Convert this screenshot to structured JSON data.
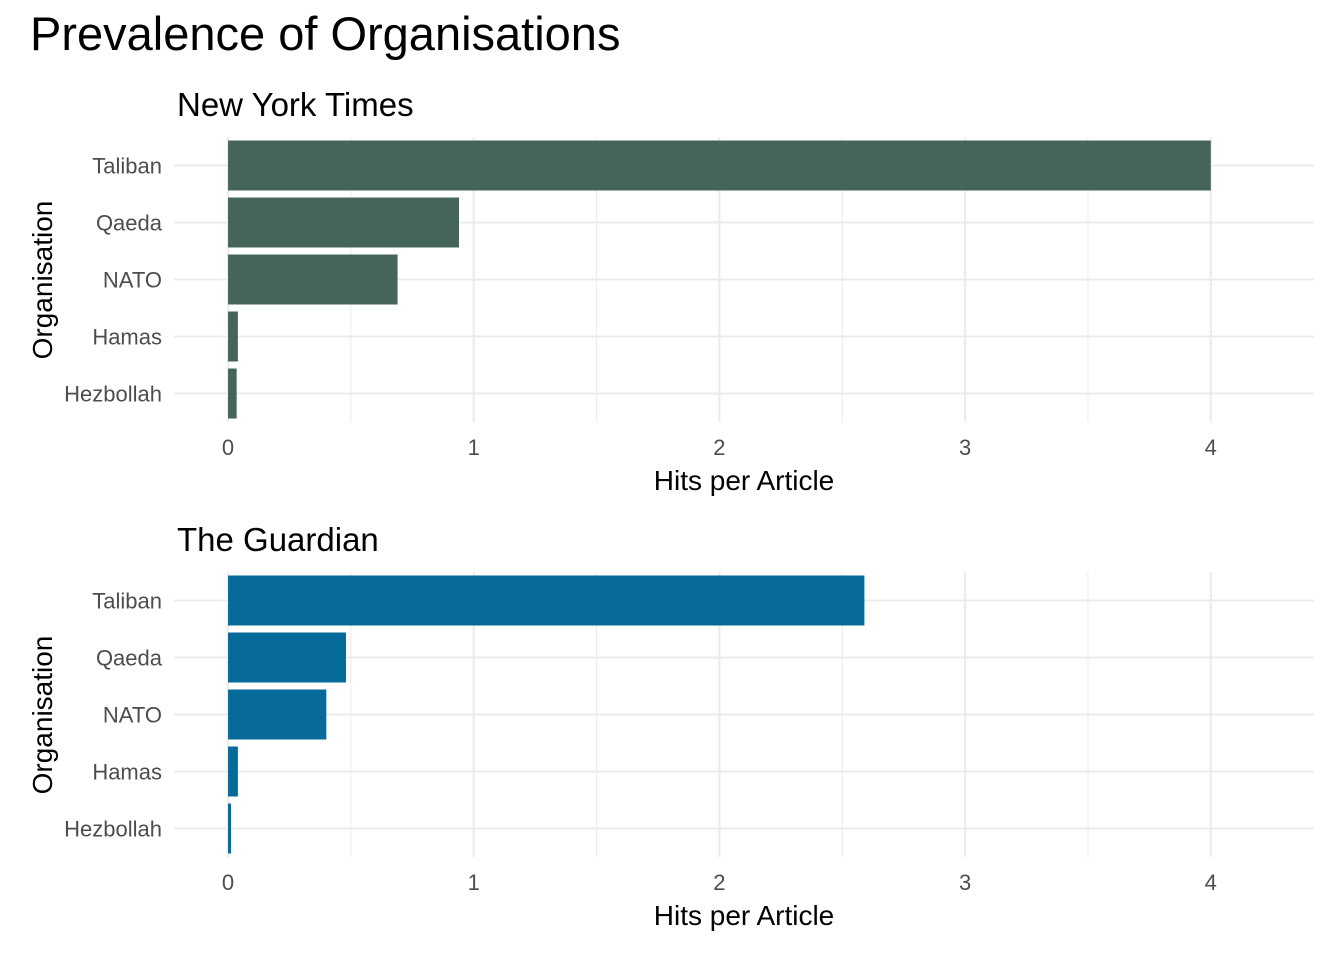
{
  "title": "Prevalence of Organisations",
  "chart_data": [
    {
      "type": "bar",
      "orientation": "horizontal",
      "title": "New York Times",
      "xlabel": "Hits per Article",
      "ylabel": "Organisation",
      "categories": [
        "Taliban",
        "Qaeda",
        "NATO",
        "Hamas",
        "Hezbollah"
      ],
      "values": [
        4.0,
        0.94,
        0.69,
        0.04,
        0.035
      ],
      "xlim": [
        -0.22,
        4.42
      ],
      "xticks": [
        "0",
        "1",
        "2",
        "3",
        "4"
      ],
      "grid": true,
      "color": "#456558"
    },
    {
      "type": "bar",
      "orientation": "horizontal",
      "title": "The Guardian",
      "xlabel": "Hits per Article",
      "ylabel": "Organisation",
      "categories": [
        "Taliban",
        "Qaeda",
        "NATO",
        "Hamas",
        "Hezbollah"
      ],
      "values": [
        2.59,
        0.48,
        0.4,
        0.04,
        0.012
      ],
      "xlim": [
        -0.22,
        4.42
      ],
      "xticks": [
        "0",
        "1",
        "2",
        "3",
        "4"
      ],
      "grid": true,
      "color": "#066a9a"
    }
  ]
}
